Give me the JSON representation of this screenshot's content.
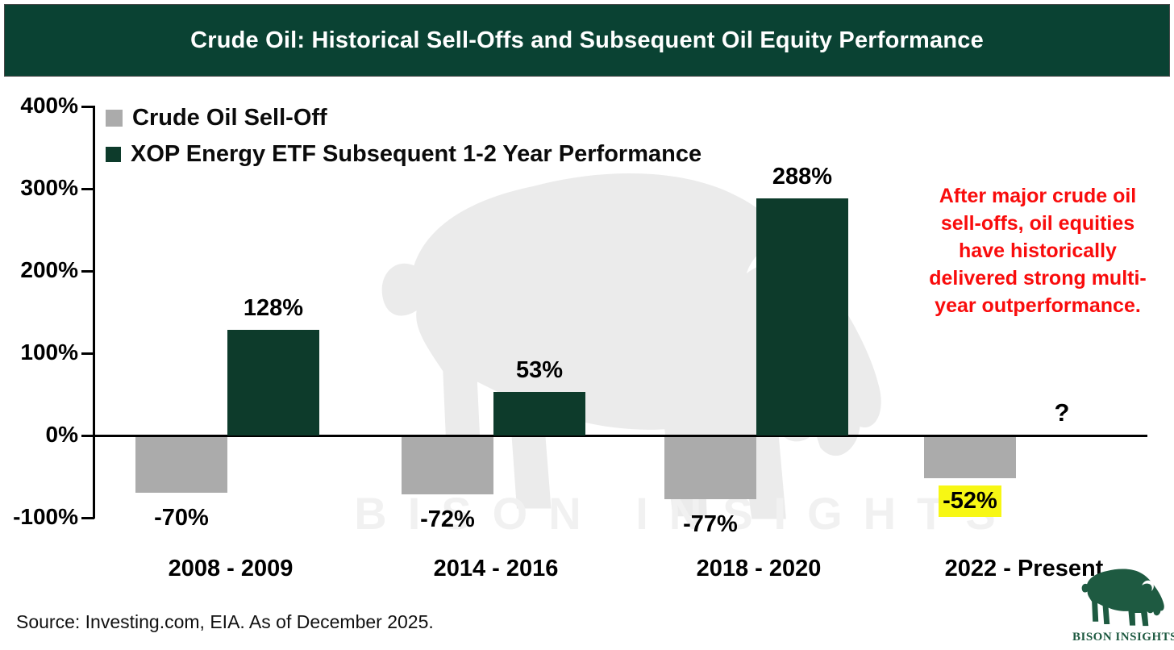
{
  "header": {
    "title": "Crude Oil: Historical Sell-Offs and Subsequent Oil Equity Performance",
    "background_color": "#0a4233",
    "text_color": "#ffffff"
  },
  "legend": {
    "items": [
      {
        "label": "Crude Oil Sell-Off",
        "color": "#ababab"
      },
      {
        "label": "XOP Energy ETF Subsequent 1-2 Year Performance",
        "color": "#0d3b2b"
      }
    ]
  },
  "chart_data": {
    "type": "bar",
    "title": "Crude Oil: Historical Sell-Offs and Subsequent Oil Equity Performance",
    "categories": [
      "2008 - 2009",
      "2014 - 2016",
      "2018 - 2020",
      "2022 - Present"
    ],
    "series": [
      {
        "name": "Crude Oil Sell-Off",
        "color": "#ababab",
        "values": [
          -70,
          -72,
          -77,
          -52
        ]
      },
      {
        "name": "XOP Energy ETF Subsequent 1-2 Year Performance",
        "color": "#0d3b2b",
        "values": [
          128,
          53,
          288,
          null
        ]
      }
    ],
    "value_labels": {
      "sell_off": [
        "-70%",
        "-72%",
        "-77%",
        "-52%"
      ],
      "xop": [
        "128%",
        "53%",
        "288%",
        "?"
      ]
    },
    "unknown_value_marker": "?",
    "highlighted_value": {
      "series": "Crude Oil Sell-Off",
      "category": "2022 - Present",
      "label": "-52%",
      "highlight_color": "#f7f714"
    },
    "xlabel": "",
    "ylabel": "",
    "ylim": [
      -100,
      400
    ],
    "ytick_values": [
      400,
      300,
      200,
      100,
      0,
      -100
    ],
    "ytick_labels": [
      "400%",
      "300%",
      "200%",
      "100%",
      "0%",
      "-100%"
    ],
    "grid": false,
    "legend_position": "top-left"
  },
  "annotation": {
    "text": "After major crude oil sell-offs, oil equities have historically delivered strong multi-year outperformance.",
    "color": "#f90c0c"
  },
  "footer": {
    "source": "Source: Investing.com, EIA. As of December 2025."
  },
  "logo": {
    "text": "BISON INSIGHTS",
    "color": "#1e5a41"
  },
  "watermark": {
    "text": "BISON INSIGHTS",
    "color": "#ebebeb"
  }
}
